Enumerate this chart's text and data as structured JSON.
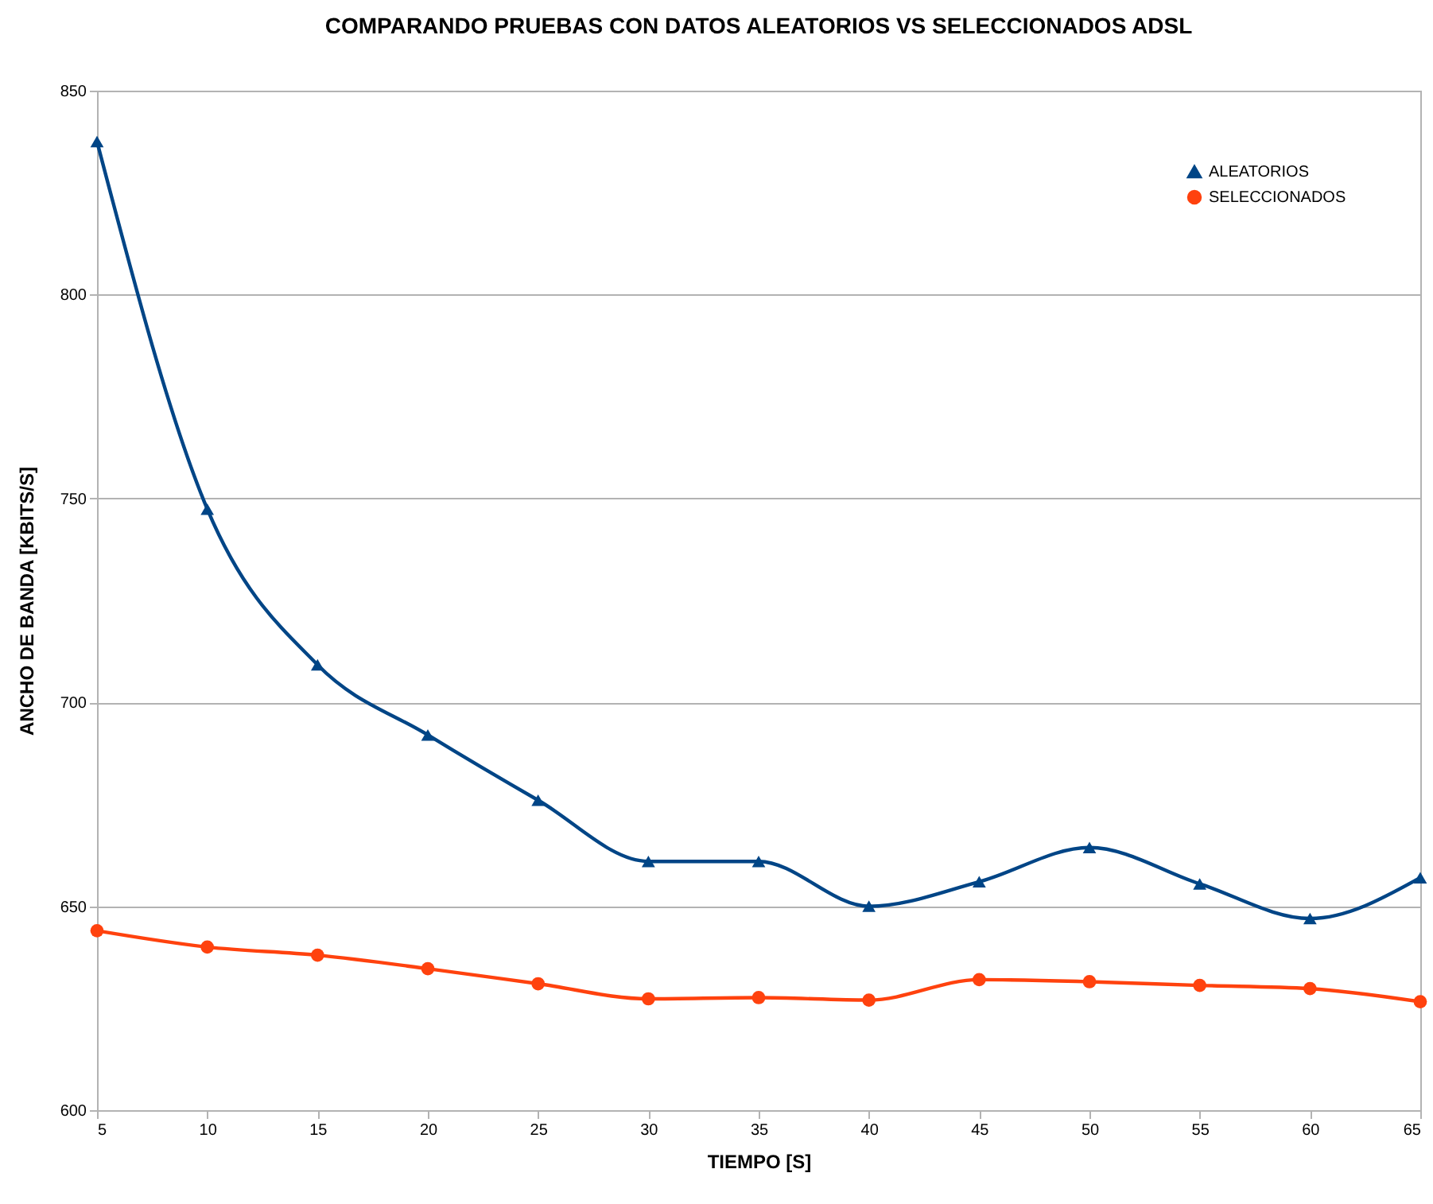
{
  "chart_data": {
    "type": "line",
    "title": "COMPARANDO PRUEBAS CON DATOS ALEATORIOS VS SELECCIONADOS ADSL",
    "xlabel": "TIEMPO [S]",
    "ylabel": "ANCHO DE BANDA [KBITS/S]",
    "x": [
      5,
      10,
      15,
      20,
      25,
      30,
      35,
      40,
      45,
      50,
      55,
      60,
      65
    ],
    "series": [
      {
        "name": "ALEATORIOS",
        "color": "#004586",
        "marker": "triangle",
        "values": [
          837.5,
          747.4,
          709.2,
          692,
          676,
          661,
          661,
          650,
          656,
          664.4,
          655.5,
          647,
          657
        ]
      },
      {
        "name": "SELECCIONADOS",
        "color": "#ff420e",
        "marker": "circle",
        "values": [
          644,
          640,
          638,
          634.7,
          631,
          627.3,
          627.6,
          627,
          632,
          631.5,
          630.6,
          629.8,
          626.6
        ]
      }
    ],
    "xlim": [
      5,
      65
    ],
    "xticks": [
      5,
      10,
      15,
      20,
      25,
      30,
      35,
      40,
      45,
      50,
      55,
      60,
      65
    ],
    "ylim": [
      600,
      850
    ],
    "yticks": [
      600,
      650,
      700,
      750,
      800,
      850
    ],
    "grid": "y",
    "legend": "top right",
    "line_style": "solid"
  }
}
